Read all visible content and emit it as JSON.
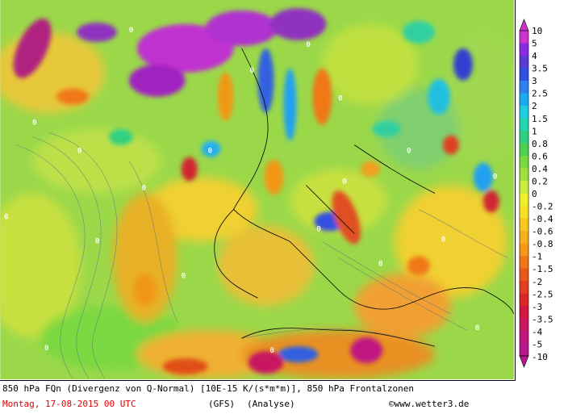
{
  "map": {
    "contour_label": "0"
  },
  "footer": {
    "line1": "850 hPa FQn (Divergenz von Q-Normal) [10E-15 K/(s*m*m)], 850 hPa Frontalzonen",
    "date": "Montag, 17-08-2015  00 UTC",
    "model": "(GFS)",
    "analysis": "(Analyse)",
    "credit": "©www.wetter3.de",
    "date_color": "#e00000"
  },
  "legend": {
    "labels": [
      "10",
      "5",
      "4",
      "3.5",
      "3",
      "2.5",
      "2",
      "1.5",
      "1",
      "0.8",
      "0.6",
      "0.4",
      "0.2",
      "0",
      "-0.2",
      "-0.4",
      "-0.6",
      "-0.8",
      "-1",
      "-1.5",
      "-2",
      "-2.5",
      "-3",
      "-3.5",
      "-4",
      "-5",
      "-10"
    ],
    "colors": [
      "#cc33cc",
      "#8a2be2",
      "#5a3cd0",
      "#3050e0",
      "#2e7ff0",
      "#1eaaf0",
      "#20cde0",
      "#26d6b0",
      "#30d080",
      "#50d050",
      "#7ad840",
      "#a0e040",
      "#c8ec40",
      "#f0f030",
      "#f8e028",
      "#f8c820",
      "#f8b020",
      "#f89818",
      "#f07818",
      "#e85818",
      "#e04020",
      "#d82828",
      "#d01840",
      "#c81860",
      "#c01880",
      "#b81890"
    ]
  }
}
